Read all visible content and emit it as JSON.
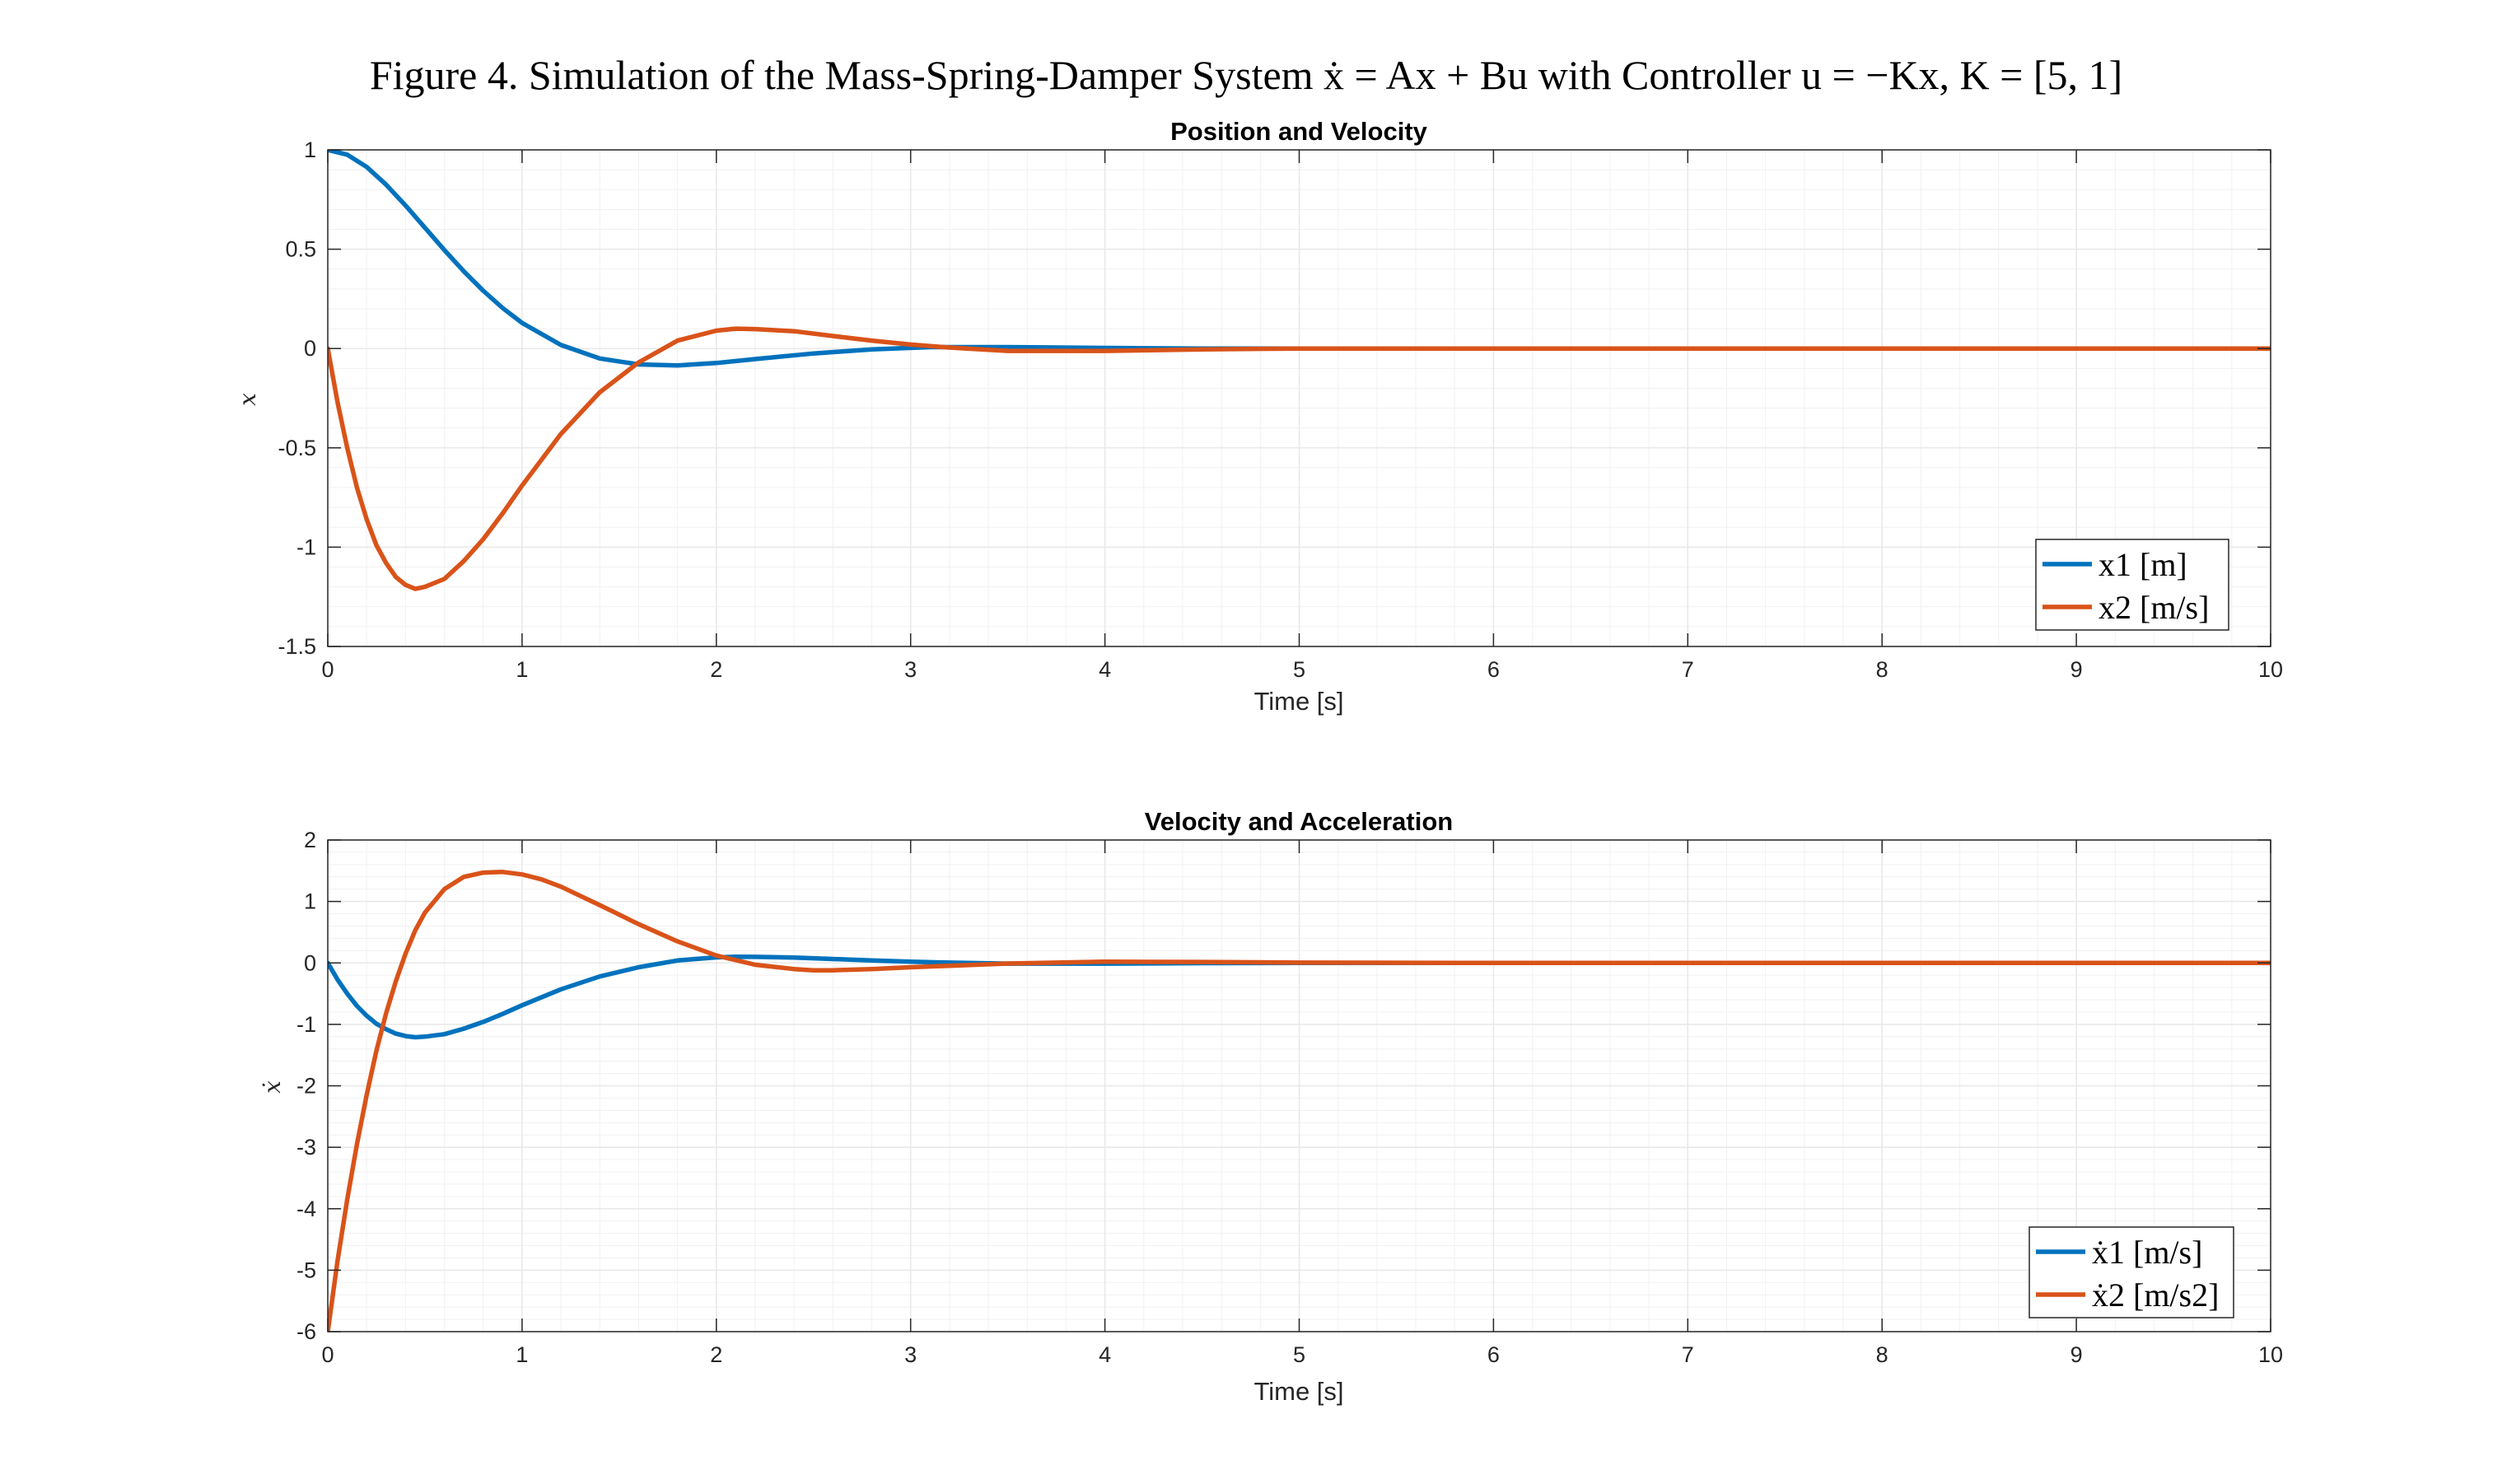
{
  "figure_title": "Figure 4. Simulation of the Mass-Spring-Damper System ẋ = Ax + Bu with Controller u = −Kx, K = [5, 1]",
  "colors": {
    "series1": "#0072BD",
    "series2": "#D95319",
    "axis": "#262626",
    "grid": "#e8e8e8"
  },
  "chart_data": [
    {
      "type": "line",
      "title": "Position and Velocity",
      "xlabel": "Time [s]",
      "ylabel": "x",
      "xlim": [
        0,
        10
      ],
      "ylim": [
        -1.5,
        1
      ],
      "xticks": [
        0,
        1,
        2,
        3,
        4,
        5,
        6,
        7,
        8,
        9,
        10
      ],
      "yticks": [
        -1.5,
        -1,
        -0.5,
        0,
        0.5,
        1
      ],
      "ytick_labels": [
        "-1.5",
        "-1",
        "-0.5",
        "0",
        "0.5",
        "1"
      ],
      "grid": "on (major and minor)",
      "legend_location": "bottom-right",
      "series": [
        {
          "name": "x1 [m]",
          "color": "#0072BD",
          "x": [
            0,
            0.1,
            0.2,
            0.3,
            0.4,
            0.5,
            0.6,
            0.7,
            0.8,
            0.9,
            1.0,
            1.2,
            1.4,
            1.6,
            1.8,
            2.0,
            2.2,
            2.5,
            2.8,
            3.1,
            3.5,
            4.0,
            4.5,
            5.0,
            6.0,
            7.0,
            8.0,
            9.0,
            10.0
          ],
          "y": [
            1.0,
            0.976,
            0.914,
            0.825,
            0.72,
            0.608,
            0.496,
            0.389,
            0.291,
            0.204,
            0.129,
            0.018,
            -0.05,
            -0.08,
            -0.085,
            -0.073,
            -0.053,
            -0.025,
            -0.004,
            0.007,
            0.007,
            0.003,
            0.0,
            0.0,
            0.0,
            0.0,
            0.0,
            0.0,
            0.0
          ]
        },
        {
          "name": "x2 [m/s]",
          "color": "#D95319",
          "x": [
            0,
            0.05,
            0.1,
            0.15,
            0.2,
            0.25,
            0.3,
            0.35,
            0.4,
            0.45,
            0.5,
            0.6,
            0.7,
            0.8,
            0.9,
            1.0,
            1.2,
            1.4,
            1.6,
            1.8,
            2.0,
            2.1,
            2.2,
            2.4,
            2.6,
            2.8,
            3.0,
            3.2,
            3.5,
            4.0,
            4.5,
            5.0,
            6.0,
            7.0,
            8.0,
            9.0,
            10.0
          ],
          "y": [
            0.0,
            -0.27,
            -0.5,
            -0.7,
            -0.86,
            -0.99,
            -1.08,
            -1.15,
            -1.19,
            -1.21,
            -1.2,
            -1.16,
            -1.07,
            -0.96,
            -0.83,
            -0.69,
            -0.43,
            -0.22,
            -0.07,
            0.04,
            0.09,
            0.1,
            0.098,
            0.087,
            0.063,
            0.04,
            0.02,
            0.005,
            -0.012,
            -0.012,
            -0.004,
            0.0,
            0.0,
            0.0,
            0.0,
            0.0,
            0.0
          ]
        }
      ]
    },
    {
      "type": "line",
      "title": "Velocity and Acceleration",
      "xlabel": "Time [s]",
      "ylabel": "ẋ",
      "xlim": [
        0,
        10
      ],
      "ylim": [
        -6,
        2
      ],
      "xticks": [
        0,
        1,
        2,
        3,
        4,
        5,
        6,
        7,
        8,
        9,
        10
      ],
      "yticks": [
        -6,
        -5,
        -4,
        -3,
        -2,
        -1,
        0,
        1,
        2
      ],
      "ytick_labels": [
        "-6",
        "-5",
        "-4",
        "-3",
        "-2",
        "-1",
        "0",
        "1",
        "2"
      ],
      "grid": "on (major and minor)",
      "legend_location": "bottom-right",
      "series": [
        {
          "name": "ẋ1 [m/s]",
          "color": "#0072BD",
          "x": [
            0,
            0.05,
            0.1,
            0.15,
            0.2,
            0.25,
            0.3,
            0.35,
            0.4,
            0.45,
            0.5,
            0.6,
            0.7,
            0.8,
            0.9,
            1.0,
            1.2,
            1.4,
            1.6,
            1.8,
            2.0,
            2.1,
            2.2,
            2.4,
            2.6,
            2.8,
            3.0,
            3.2,
            3.5,
            4.0,
            4.5,
            5.0,
            6.0,
            7.0,
            8.0,
            9.0,
            10.0
          ],
          "y": [
            0.0,
            -0.27,
            -0.5,
            -0.7,
            -0.86,
            -0.99,
            -1.08,
            -1.15,
            -1.19,
            -1.21,
            -1.2,
            -1.16,
            -1.07,
            -0.96,
            -0.83,
            -0.69,
            -0.43,
            -0.22,
            -0.07,
            0.04,
            0.09,
            0.1,
            0.098,
            0.087,
            0.063,
            0.04,
            0.02,
            0.005,
            -0.012,
            -0.012,
            -0.004,
            0.0,
            0.0,
            0.0,
            0.0,
            0.0,
            0.0
          ]
        },
        {
          "name": "ẋ2 [m/s2]",
          "color": "#D95319",
          "x": [
            0,
            0.05,
            0.1,
            0.15,
            0.2,
            0.25,
            0.3,
            0.35,
            0.4,
            0.45,
            0.5,
            0.6,
            0.7,
            0.8,
            0.9,
            1.0,
            1.1,
            1.2,
            1.4,
            1.6,
            1.8,
            2.0,
            2.2,
            2.4,
            2.5,
            2.6,
            2.8,
            3.0,
            3.5,
            4.0,
            4.5,
            5.0,
            6.0,
            7.0,
            8.0,
            9.0,
            10.0
          ],
          "y": [
            -6.0,
            -4.85,
            -3.85,
            -2.95,
            -2.15,
            -1.43,
            -0.82,
            -0.3,
            0.15,
            0.53,
            0.82,
            1.2,
            1.4,
            1.47,
            1.48,
            1.44,
            1.36,
            1.24,
            0.94,
            0.63,
            0.35,
            0.12,
            -0.03,
            -0.1,
            -0.12,
            -0.12,
            -0.1,
            -0.07,
            -0.01,
            0.02,
            0.015,
            0.005,
            0.0,
            0.0,
            0.0,
            0.0,
            0.0
          ]
        }
      ]
    }
  ]
}
